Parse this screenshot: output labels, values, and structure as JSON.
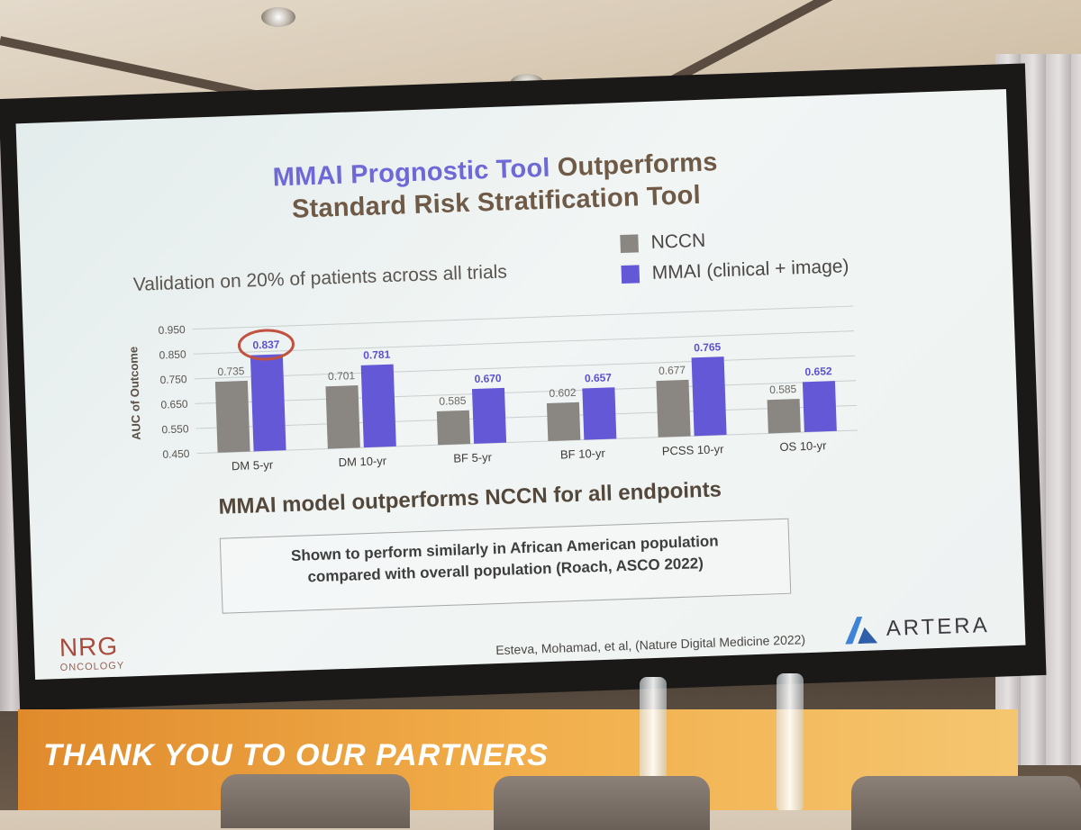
{
  "slide": {
    "title_highlight": "MMAI Prognostic Tool",
    "title_rest": " Outperforms",
    "title_line2": "Standard Risk Stratification Tool",
    "subtitle": "Validation on 20% of patients across all trials",
    "main_claim": "MMAI model outperforms NCCN for all endpoints",
    "note_line1": "Shown to perform similarly in African American population",
    "note_line2": "compared with overall population (Roach, ASCO 2022)",
    "citation": "Esteva, Mohamad, et al, (Nature Digital Medicine 2022)",
    "logo_left_main": "NRG",
    "logo_left_sub": "ONCOLOGY",
    "logo_right": "ARTERA"
  },
  "venue": {
    "banner_text": "THANK YOU TO OUR PARTNERS"
  },
  "chart_data": {
    "type": "bar",
    "categories": [
      "DM 5-yr",
      "DM 10-yr",
      "BF 5-yr",
      "BF 10-yr",
      "PCSS 10-yr",
      "OS 10-yr"
    ],
    "series": [
      {
        "name": "NCCN",
        "values": [
          0.735,
          0.701,
          0.585,
          0.602,
          0.677,
          0.585
        ],
        "labels": [
          "0.735",
          "0.701",
          "0.585",
          "0.602",
          "0.677",
          "0.585"
        ],
        "color": "#8a8783"
      },
      {
        "name": "MMAI (clinical + image)",
        "values": [
          0.837,
          0.781,
          0.67,
          0.657,
          0.765,
          0.652
        ],
        "labels": [
          "0.837",
          "0.781",
          "0.670",
          "0.657",
          "0.765",
          "0.652"
        ],
        "color": "#6558d6"
      }
    ],
    "ylabel": "AUC of Outcome",
    "yticks": [
      "0.950",
      "0.850",
      "0.750",
      "0.650",
      "0.550",
      "0.450"
    ],
    "ylim": [
      0.45,
      0.95
    ],
    "highlight": {
      "category": "DM 5-yr",
      "series": "MMAI (clinical + image)",
      "color": "#c0523f"
    },
    "grid": true,
    "legend_position": "top-right"
  }
}
